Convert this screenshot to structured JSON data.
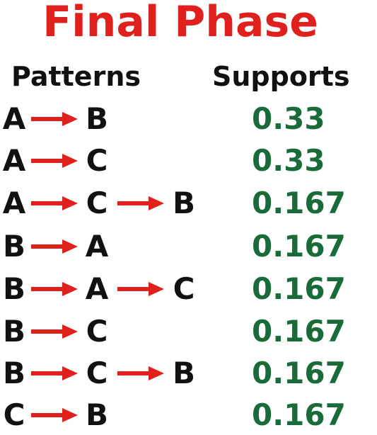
{
  "title": "Final Phase",
  "headers": {
    "patterns": "Patterns",
    "supports": "Supports"
  },
  "colors": {
    "title": "#e0201c",
    "arrow": "#e0201c",
    "letters": "#111111",
    "supports": "#1a6b3a"
  },
  "rows": [
    {
      "pattern": [
        "A",
        "B"
      ],
      "support": "0.33"
    },
    {
      "pattern": [
        "A",
        "C"
      ],
      "support": "0.33"
    },
    {
      "pattern": [
        "A",
        "C",
        "B"
      ],
      "support": "0.167"
    },
    {
      "pattern": [
        "B",
        "A"
      ],
      "support": "0.167"
    },
    {
      "pattern": [
        "B",
        "A",
        "C"
      ],
      "support": "0.167"
    },
    {
      "pattern": [
        "B",
        "C"
      ],
      "support": "0.167"
    },
    {
      "pattern": [
        "B",
        "C",
        "B"
      ],
      "support": "0.167"
    },
    {
      "pattern": [
        "C",
        "B"
      ],
      "support": "0.167"
    }
  ]
}
